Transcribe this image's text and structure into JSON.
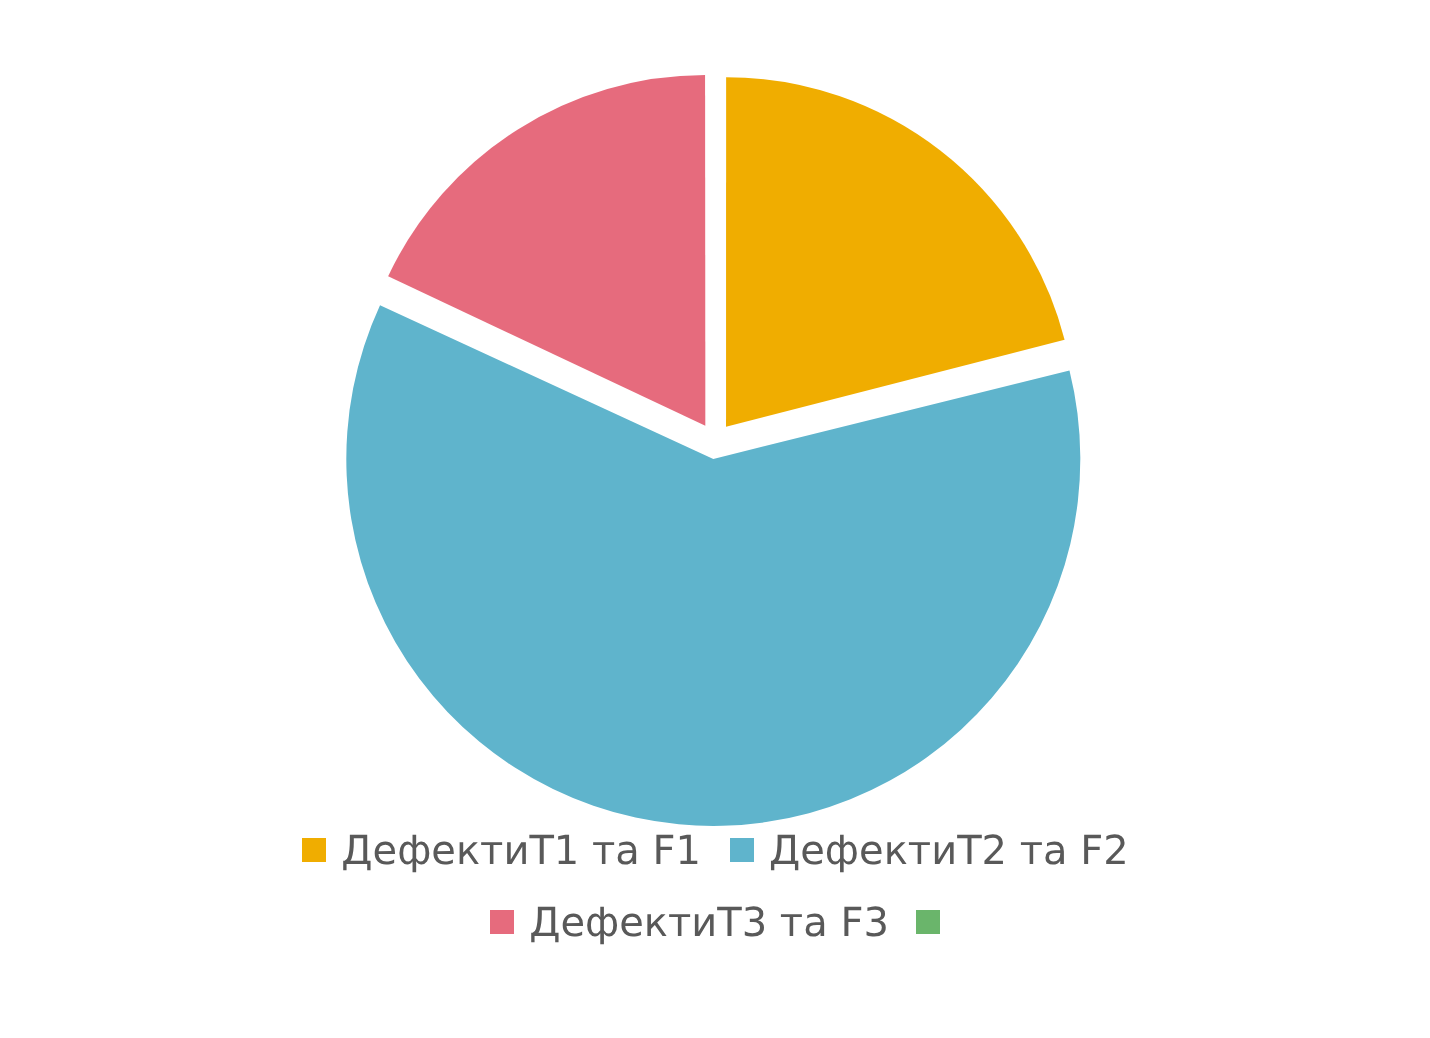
{
  "chart_data": {
    "type": "pie",
    "categories": [
      "ДефектиT1 та F1",
      "ДефектиT2 та F2",
      "ДефектиT3 та F3",
      null
    ],
    "values": [
      21,
      61,
      18,
      0
    ],
    "colors": [
      "#f0ad00",
      "#5fb4cc",
      "#e66b7d",
      "#6ab56b"
    ],
    "legend": "bottom"
  }
}
